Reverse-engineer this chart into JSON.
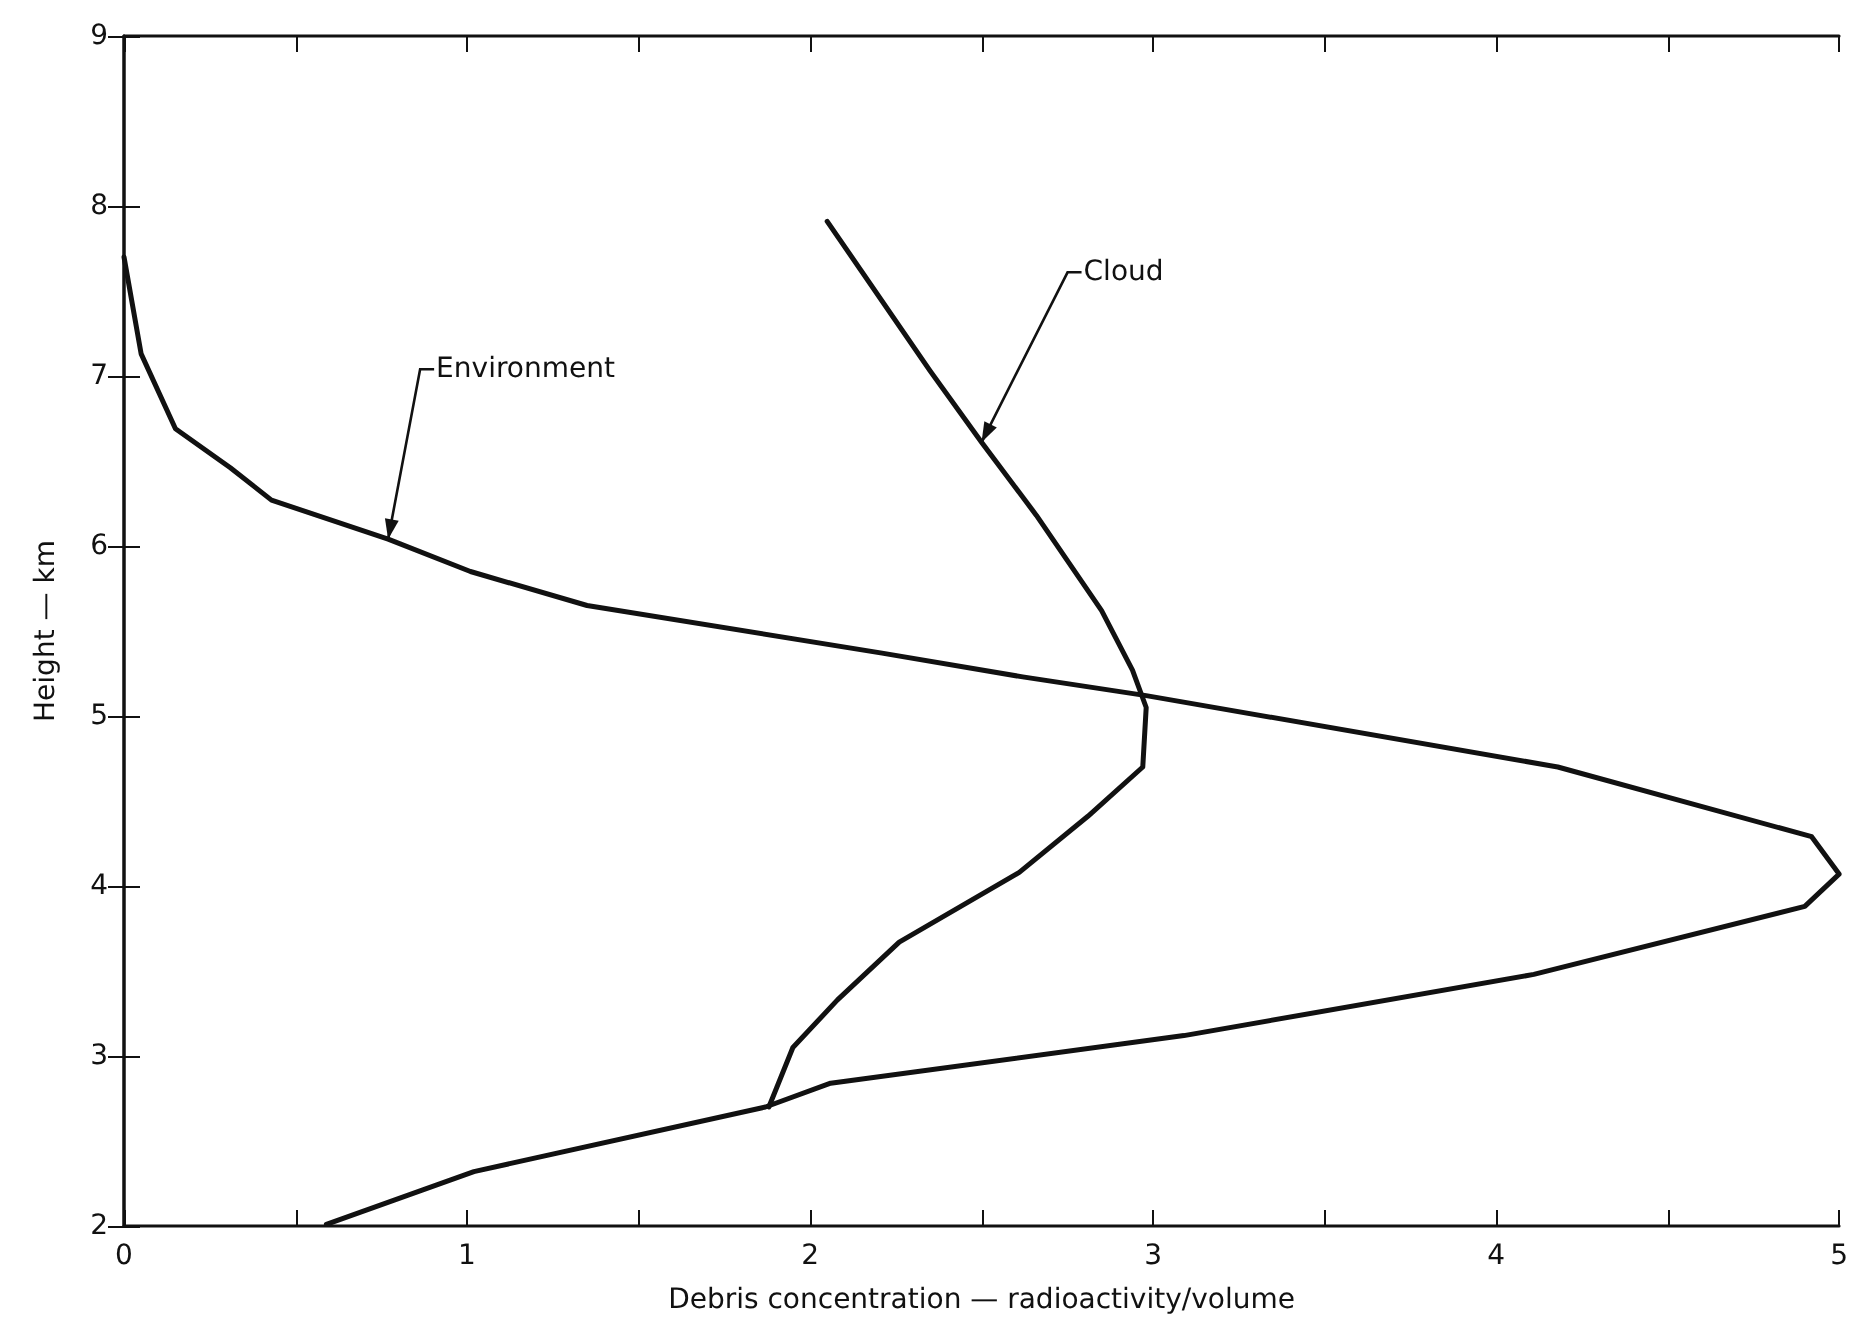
{
  "chart_data": {
    "type": "line",
    "xlabel": "Debris concentration — radioactivity/volume",
    "ylabel": "Height — km",
    "xlim": [
      0,
      5
    ],
    "xticks": [
      0,
      {
        "value": 0.5,
        "label": null
      },
      1,
      {
        "value": 1.5,
        "label": null
      },
      2,
      {
        "value": 2.5,
        "label": null
      },
      3,
      {
        "value": 3.5,
        "label": null
      },
      4,
      {
        "value": 4.5,
        "label": null
      },
      5
    ],
    "ylim": [
      2,
      9
    ],
    "yticks": [
      2,
      3,
      4,
      5,
      6,
      7,
      8,
      9
    ],
    "grid": false,
    "legend": false,
    "marker": "none",
    "line_style": "solid",
    "series": [
      {
        "name": "Environment",
        "color": "#111111",
        "x": [
          0.0,
          0.05,
          0.15,
          0.31,
          0.43,
          0.77,
          1.01,
          1.35,
          2.21,
          2.62,
          2.98,
          4.18,
          4.92,
          5.0,
          4.9,
          4.11,
          3.09,
          2.06,
          1.87,
          1.02,
          0.59
        ],
        "values": [
          7.7,
          7.13,
          6.69,
          6.46,
          6.27,
          6.04,
          5.85,
          5.65,
          5.37,
          5.23,
          5.12,
          4.7,
          4.29,
          4.07,
          3.88,
          3.48,
          3.12,
          2.84,
          2.7,
          2.32,
          2.01
        ]
      },
      {
        "name": "Cloud",
        "color": "#111111",
        "x": [
          2.05,
          2.35,
          2.5,
          2.66,
          2.85,
          2.94,
          2.98,
          2.97,
          2.81,
          2.61,
          2.26,
          2.08,
          1.95,
          1.88
        ],
        "values": [
          7.91,
          7.03,
          6.61,
          6.18,
          5.62,
          5.27,
          5.05,
          4.7,
          4.41,
          4.08,
          3.67,
          3.33,
          3.05,
          2.7
        ]
      }
    ]
  }
}
